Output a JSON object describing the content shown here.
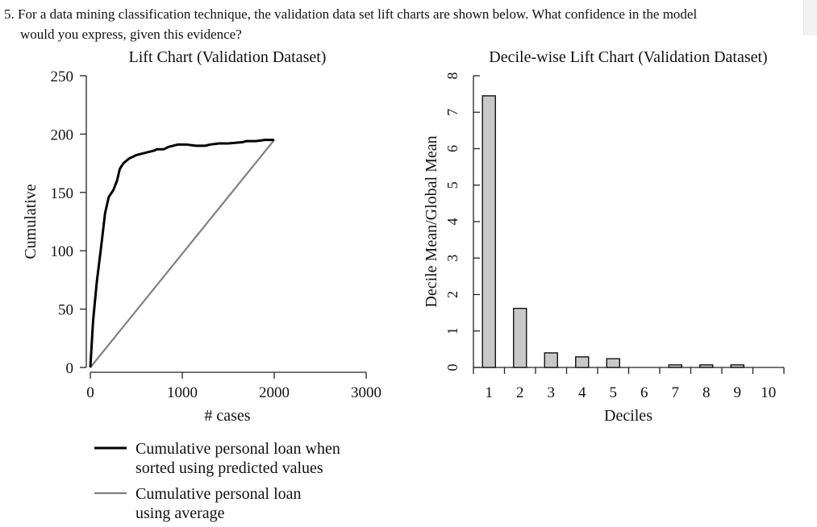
{
  "question": {
    "line1": "5. For a data mining classification technique, the validation data set lift charts are shown below. What confidence in the model",
    "line2": "would you express, given this evidence?"
  },
  "chart_data": [
    {
      "type": "line",
      "title": "Lift Chart (Validation Dataset)",
      "xlabel": "# cases",
      "ylabel": "Cumulative",
      "xlim": [
        0,
        3000
      ],
      "ylim": [
        0,
        250
      ],
      "xticks": [
        "0",
        "1000",
        "2000",
        "3000"
      ],
      "yticks": [
        "0",
        "50",
        "100",
        "150",
        "200",
        "250"
      ],
      "grid": false,
      "legend_placement": "bottom",
      "series": [
        {
          "name": "Cumulative personal loan when sorted using predicted values",
          "legend_lines": [
            "Cumulative personal loan when",
            "sorted using predicted values"
          ],
          "color": "#000000",
          "x": [
            0,
            30,
            70,
            120,
            160,
            200,
            250,
            290,
            320,
            335,
            360,
            420,
            500,
            600,
            700,
            720,
            800,
            850,
            950,
            1050,
            1150,
            1250,
            1300,
            1400,
            1500,
            1650,
            1700,
            1800,
            1900,
            2000
          ],
          "y": [
            0,
            40,
            73,
            105,
            132,
            146,
            152,
            160,
            170,
            172,
            175,
            179,
            182,
            184,
            186,
            187,
            187,
            189,
            191,
            191,
            190,
            190,
            191,
            192,
            192,
            193,
            194,
            194,
            195,
            195
          ]
        },
        {
          "name": "Cumulative personal loan using average",
          "legend_lines": [
            "Cumulative personal loan",
            "using average"
          ],
          "color": "#808080",
          "x": [
            0,
            2000
          ],
          "y": [
            0,
            195
          ]
        }
      ]
    },
    {
      "type": "bar",
      "title": "Decile-wise Lift Chart (Validation Dataset)",
      "xlabel": "Deciles",
      "ylabel": "Decile Mean/Global Mean",
      "ylim": [
        0,
        8
      ],
      "yticks": [
        "0",
        "1",
        "2",
        "3",
        "4",
        "5",
        "6",
        "7",
        "8"
      ],
      "categories": [
        "1",
        "2",
        "3",
        "4",
        "5",
        "6",
        "7",
        "8",
        "9",
        "10"
      ],
      "values": [
        7.45,
        1.62,
        0.4,
        0.29,
        0.24,
        0,
        0.07,
        0.07,
        0.07,
        0
      ],
      "bar_color": "#c8c8c8",
      "grid": false
    }
  ]
}
